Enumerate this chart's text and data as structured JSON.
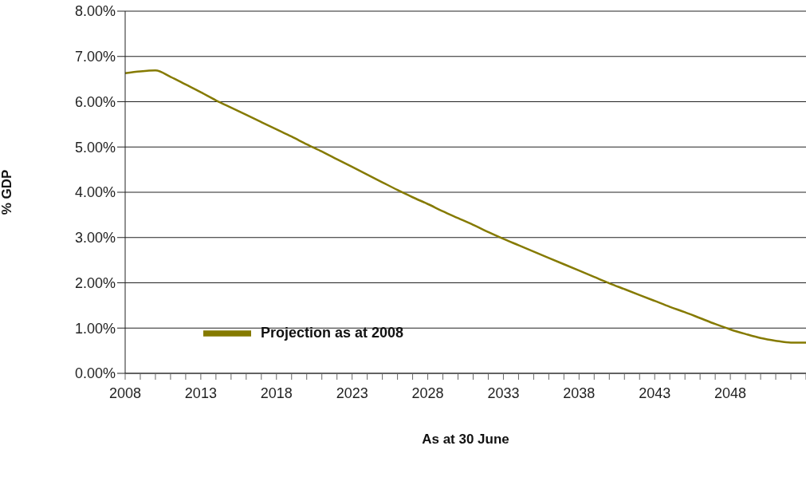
{
  "chart_data": {
    "type": "line",
    "xlabel": "As at 30 June",
    "ylabel": "% GDP",
    "categories": [
      "2008",
      null,
      null,
      null,
      null,
      "2013",
      null,
      null,
      null,
      null,
      "2018",
      null,
      null,
      null,
      null,
      "2023",
      null,
      null,
      null,
      null,
      "2028",
      null,
      null,
      null,
      null,
      "2033",
      null,
      null,
      null,
      null,
      "2038",
      null,
      null,
      null,
      null,
      "2043",
      null,
      null,
      null,
      null,
      "2048",
      null,
      null,
      null,
      null,
      null
    ],
    "series": [
      {
        "name": "Projection as at 2008",
        "color": "#857a00",
        "values": [
          6.63,
          6.67,
          6.69,
          6.55,
          6.38,
          6.21,
          6.03,
          5.87,
          5.71,
          5.55,
          5.39,
          5.23,
          5.06,
          4.9,
          4.73,
          4.56,
          4.39,
          4.22,
          4.05,
          3.89,
          3.74,
          3.58,
          3.43,
          3.28,
          3.12,
          2.97,
          2.83,
          2.69,
          2.55,
          2.41,
          2.27,
          2.13,
          1.99,
          1.86,
          1.73,
          1.6,
          1.47,
          1.35,
          1.22,
          1.09,
          0.97,
          0.87,
          0.78,
          0.72,
          0.68,
          0.68
        ]
      }
    ],
    "ylim": [
      0,
      8
    ],
    "yticks": [
      {
        "value": 0,
        "label": "0.00%"
      },
      {
        "value": 1,
        "label": "1.00%"
      },
      {
        "value": 2,
        "label": "2.00%"
      },
      {
        "value": 3,
        "label": "3.00%"
      },
      {
        "value": 4,
        "label": "4.00%"
      },
      {
        "value": 5,
        "label": "5.00%"
      },
      {
        "value": 6,
        "label": "6.00%"
      },
      {
        "value": 7,
        "label": "7.00%"
      },
      {
        "value": 8,
        "label": "8.00%"
      }
    ],
    "grid": "y",
    "legend": "bottom left",
    "marker": "none",
    "line_style": "solid"
  }
}
